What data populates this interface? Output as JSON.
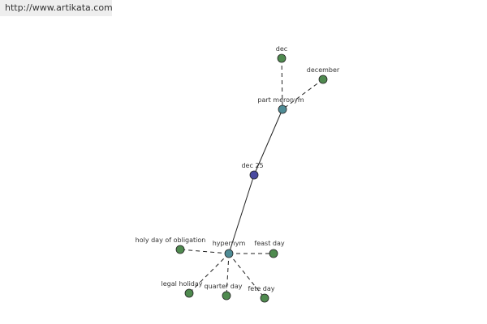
{
  "header": {
    "url": "http://www.artikata.com"
  },
  "nodes": [
    {
      "label": "dec"
    },
    {
      "label": "december"
    },
    {
      "label": "part meronym"
    },
    {
      "label": "dec 25"
    },
    {
      "label": "hypernym"
    },
    {
      "label": "holy day of obligation"
    },
    {
      "label": "feast day"
    },
    {
      "label": "legal holiday"
    },
    {
      "label": "quarter day"
    },
    {
      "label": "fete day"
    }
  ]
}
